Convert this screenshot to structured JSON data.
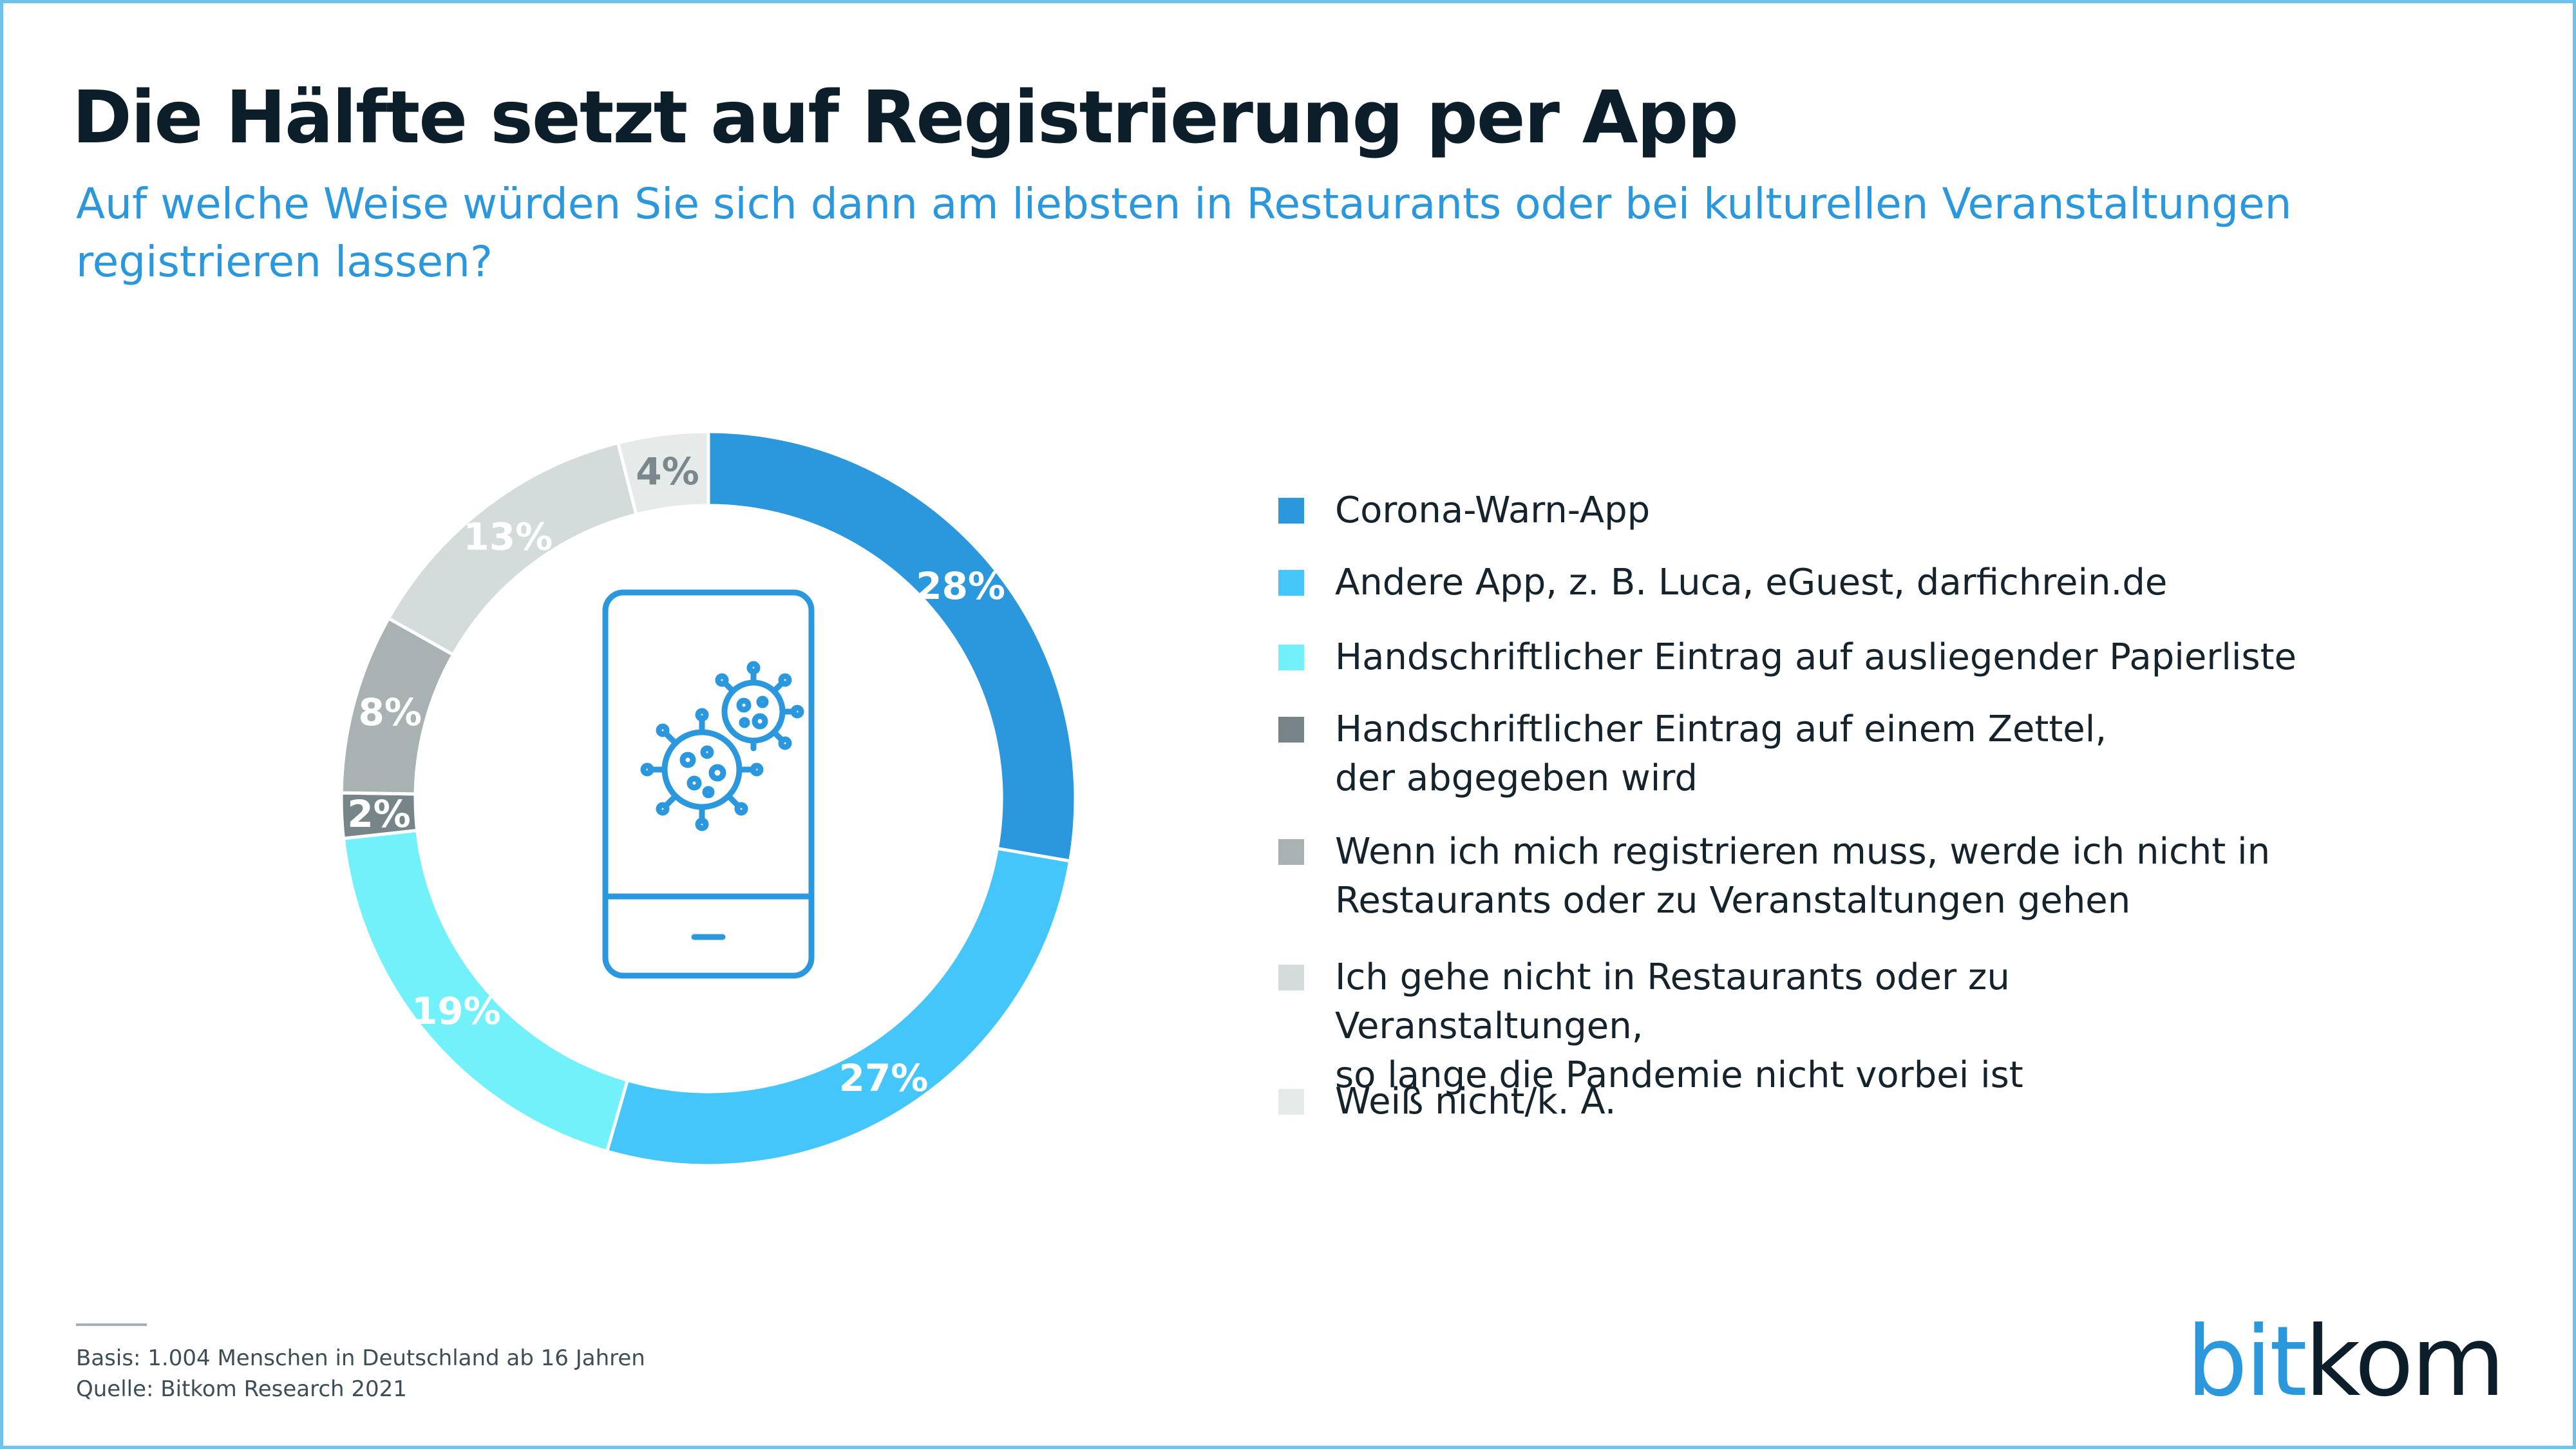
{
  "header": {
    "title": "Die Hälfte setzt auf Registrierung per App",
    "subtitle": "Auf welche Weise würden Sie sich dann am liebsten in Restaurants oder bei kulturellen Veranstaltungen registrieren lassen?"
  },
  "chart_data": {
    "type": "pie",
    "variant": "donut",
    "unit": "%",
    "slices": [
      {
        "label": "Corona-Warn-App",
        "value": 28,
        "value_label": "28%",
        "color": "#2b97dc",
        "label_color": "#ffffff"
      },
      {
        "label": "Andere App, z. B. Luca, eGuest, darfichrein.de",
        "value": 27,
        "value_label": "27%",
        "color": "#44c6fb",
        "label_color": "#ffffff"
      },
      {
        "label": "Handschriftlicher Eintrag auf ausliegender Papierliste",
        "value": 19,
        "value_label": "19%",
        "color": "#72f1fa",
        "label_color": "#ffffff"
      },
      {
        "label": "Handschriftlicher Eintrag auf einem Zettel,\nder abgegeben wird",
        "value": 2,
        "value_label": "2%",
        "color": "#778589",
        "label_color": "#ffffff"
      },
      {
        "label": "Wenn ich mich registrieren muss, werde ich nicht in\nRestaurants oder zu Veranstaltungen gehen",
        "value": 8,
        "value_label": "8%",
        "color": "#a8b2b3",
        "label_color": "#ffffff"
      },
      {
        "label": "Ich gehe nicht in Restaurants oder zu Veranstaltungen,\nso lange die Pandemie nicht vorbei ist",
        "value": 13,
        "value_label": "13%",
        "color": "#d3dcdb",
        "label_color": "#ffffff"
      },
      {
        "label": "Weiß nicht/k. A.",
        "value": 4,
        "value_label": "4%",
        "color": "#e6ebea",
        "label_color": "#7a878c"
      }
    ],
    "legend_placement": "right",
    "center_icon": "smartphone-virus-icon"
  },
  "footer": {
    "basis": "Basis: 1.004 Menschen in Deutschland ab 16 Jahren",
    "source": "Quelle: Bitkom Research 2021"
  },
  "logo": {
    "bit": "bit",
    "kom": "kom"
  },
  "colors": {
    "accent": "#2b97dc",
    "title": "#0c1e2a",
    "icon": "#2b97dc"
  }
}
